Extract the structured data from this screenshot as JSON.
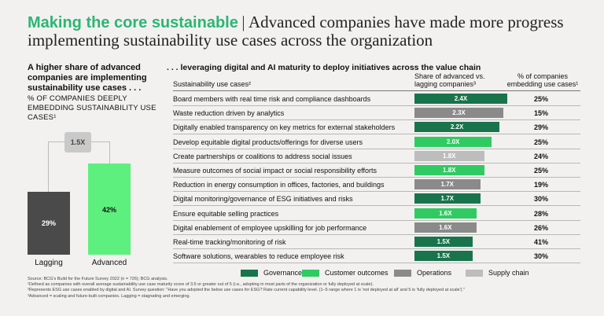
{
  "header": {
    "title_highlight": "Making the core sustainable",
    "title_separator": "|",
    "title_rest": "Advanced companies have made more progress implementing sustainability use cases across the organization"
  },
  "left_panel": {
    "heading": "A higher share of advanced companies are implementing sustainability use cases . . .",
    "subheading": "% OF COMPANIES DEEPLY EMBEDDING SUSTAINABILITY USE CASES¹",
    "multiplier": "1.5X"
  },
  "right_panel": {
    "heading": ". . . leveraging digital and AI maturity to deploy initiatives across the value chain",
    "col_use_cases": "Sustainability use cases²",
    "col_share": "Share of advanced vs. lagging companies³",
    "col_pct": "% of companies embedding use cases¹"
  },
  "colors": {
    "Governance": "#19744c",
    "Customer outcomes": "#2fcb62",
    "Operations": "#8a8a8a",
    "Supply chain": "#bdbdbd",
    "Lagging": "#4a4a4a",
    "Advanced": "#5ef07e"
  },
  "chart_data": [
    {
      "type": "bar",
      "title": "% of companies deeply embedding sustainability use cases",
      "categories": [
        "Lagging",
        "Advanced"
      ],
      "values": [
        29,
        42
      ],
      "value_labels": [
        "29%",
        "42%"
      ],
      "ylim": [
        0,
        50
      ]
    },
    {
      "type": "bar",
      "orientation": "horizontal",
      "title": "Share of advanced vs. lagging companies",
      "xlim": [
        0,
        2.4
      ],
      "rows": [
        {
          "use_case": "Board members with real time risk and compliance dashboards",
          "ratio": 2.4,
          "label": "2.4X",
          "category": "Governance",
          "pct": "25%"
        },
        {
          "use_case": "Waste reduction driven by analytics",
          "ratio": 2.3,
          "label": "2.3X",
          "category": "Operations",
          "pct": "15%"
        },
        {
          "use_case": "Digitally enabled transparency on key metrics for external stakeholders",
          "ratio": 2.2,
          "label": "2.2X",
          "category": "Governance",
          "pct": "29%"
        },
        {
          "use_case": "Develop equitable digital products/offerings for diverse users",
          "ratio": 2.0,
          "label": "2.0X",
          "category": "Customer outcomes",
          "pct": "25%"
        },
        {
          "use_case": "Create partnerships or coalitions to address social issues",
          "ratio": 1.8,
          "label": "1.8X",
          "category": "Supply chain",
          "pct": "24%"
        },
        {
          "use_case": "Measure outcomes of social impact or social responsibility efforts",
          "ratio": 1.8,
          "label": "1.8X",
          "category": "Customer outcomes",
          "pct": "25%"
        },
        {
          "use_case": "Reduction in energy consumption in offices, factories, and buildings",
          "ratio": 1.7,
          "label": "1.7X",
          "category": "Operations",
          "pct": "19%"
        },
        {
          "use_case": "Digital monitoring/governance of ESG initiatives and risks",
          "ratio": 1.7,
          "label": "1.7X",
          "category": "Governance",
          "pct": "30%"
        },
        {
          "use_case": "Ensure equitable selling practices",
          "ratio": 1.6,
          "label": "1.6X",
          "category": "Customer outcomes",
          "pct": "28%"
        },
        {
          "use_case": "Digital enablement of employee upskilling for job performance",
          "ratio": 1.6,
          "label": "1.6X",
          "category": "Operations",
          "pct": "26%"
        },
        {
          "use_case": "Real-time tracking/monitoring of risk",
          "ratio": 1.5,
          "label": "1.5X",
          "category": "Governance",
          "pct": "41%"
        },
        {
          "use_case": "Software solutions, wearables to reduce employee risk",
          "ratio": 1.5,
          "label": "1.5X",
          "category": "Governance",
          "pct": "30%"
        }
      ],
      "legend": [
        "Governance",
        "Customer outcomes",
        "Operations",
        "Supply chain"
      ]
    }
  ],
  "footnotes": {
    "source": "Source: BCG's Build for the Future Survey 2022 (n = 726); BCG analysis.",
    "note1": "¹Defined as companies with overall average sustainability use case maturity score of 3.5 or greater out of 5 (i.e., adopting in most parts of the organization or fully deployed at scale).",
    "note2": "²Represents ESG use cases enabled by digital and AI. Survey question: \"Have you adopted the below use cases for ESG? Rate current capability level. (1–5 range where 1 is 'not deployed at all' and 5 is 'fully deployed at scale').\"",
    "note3": "³Advanced = scaling and future-built companies. Lagging = stagnating and emerging."
  }
}
